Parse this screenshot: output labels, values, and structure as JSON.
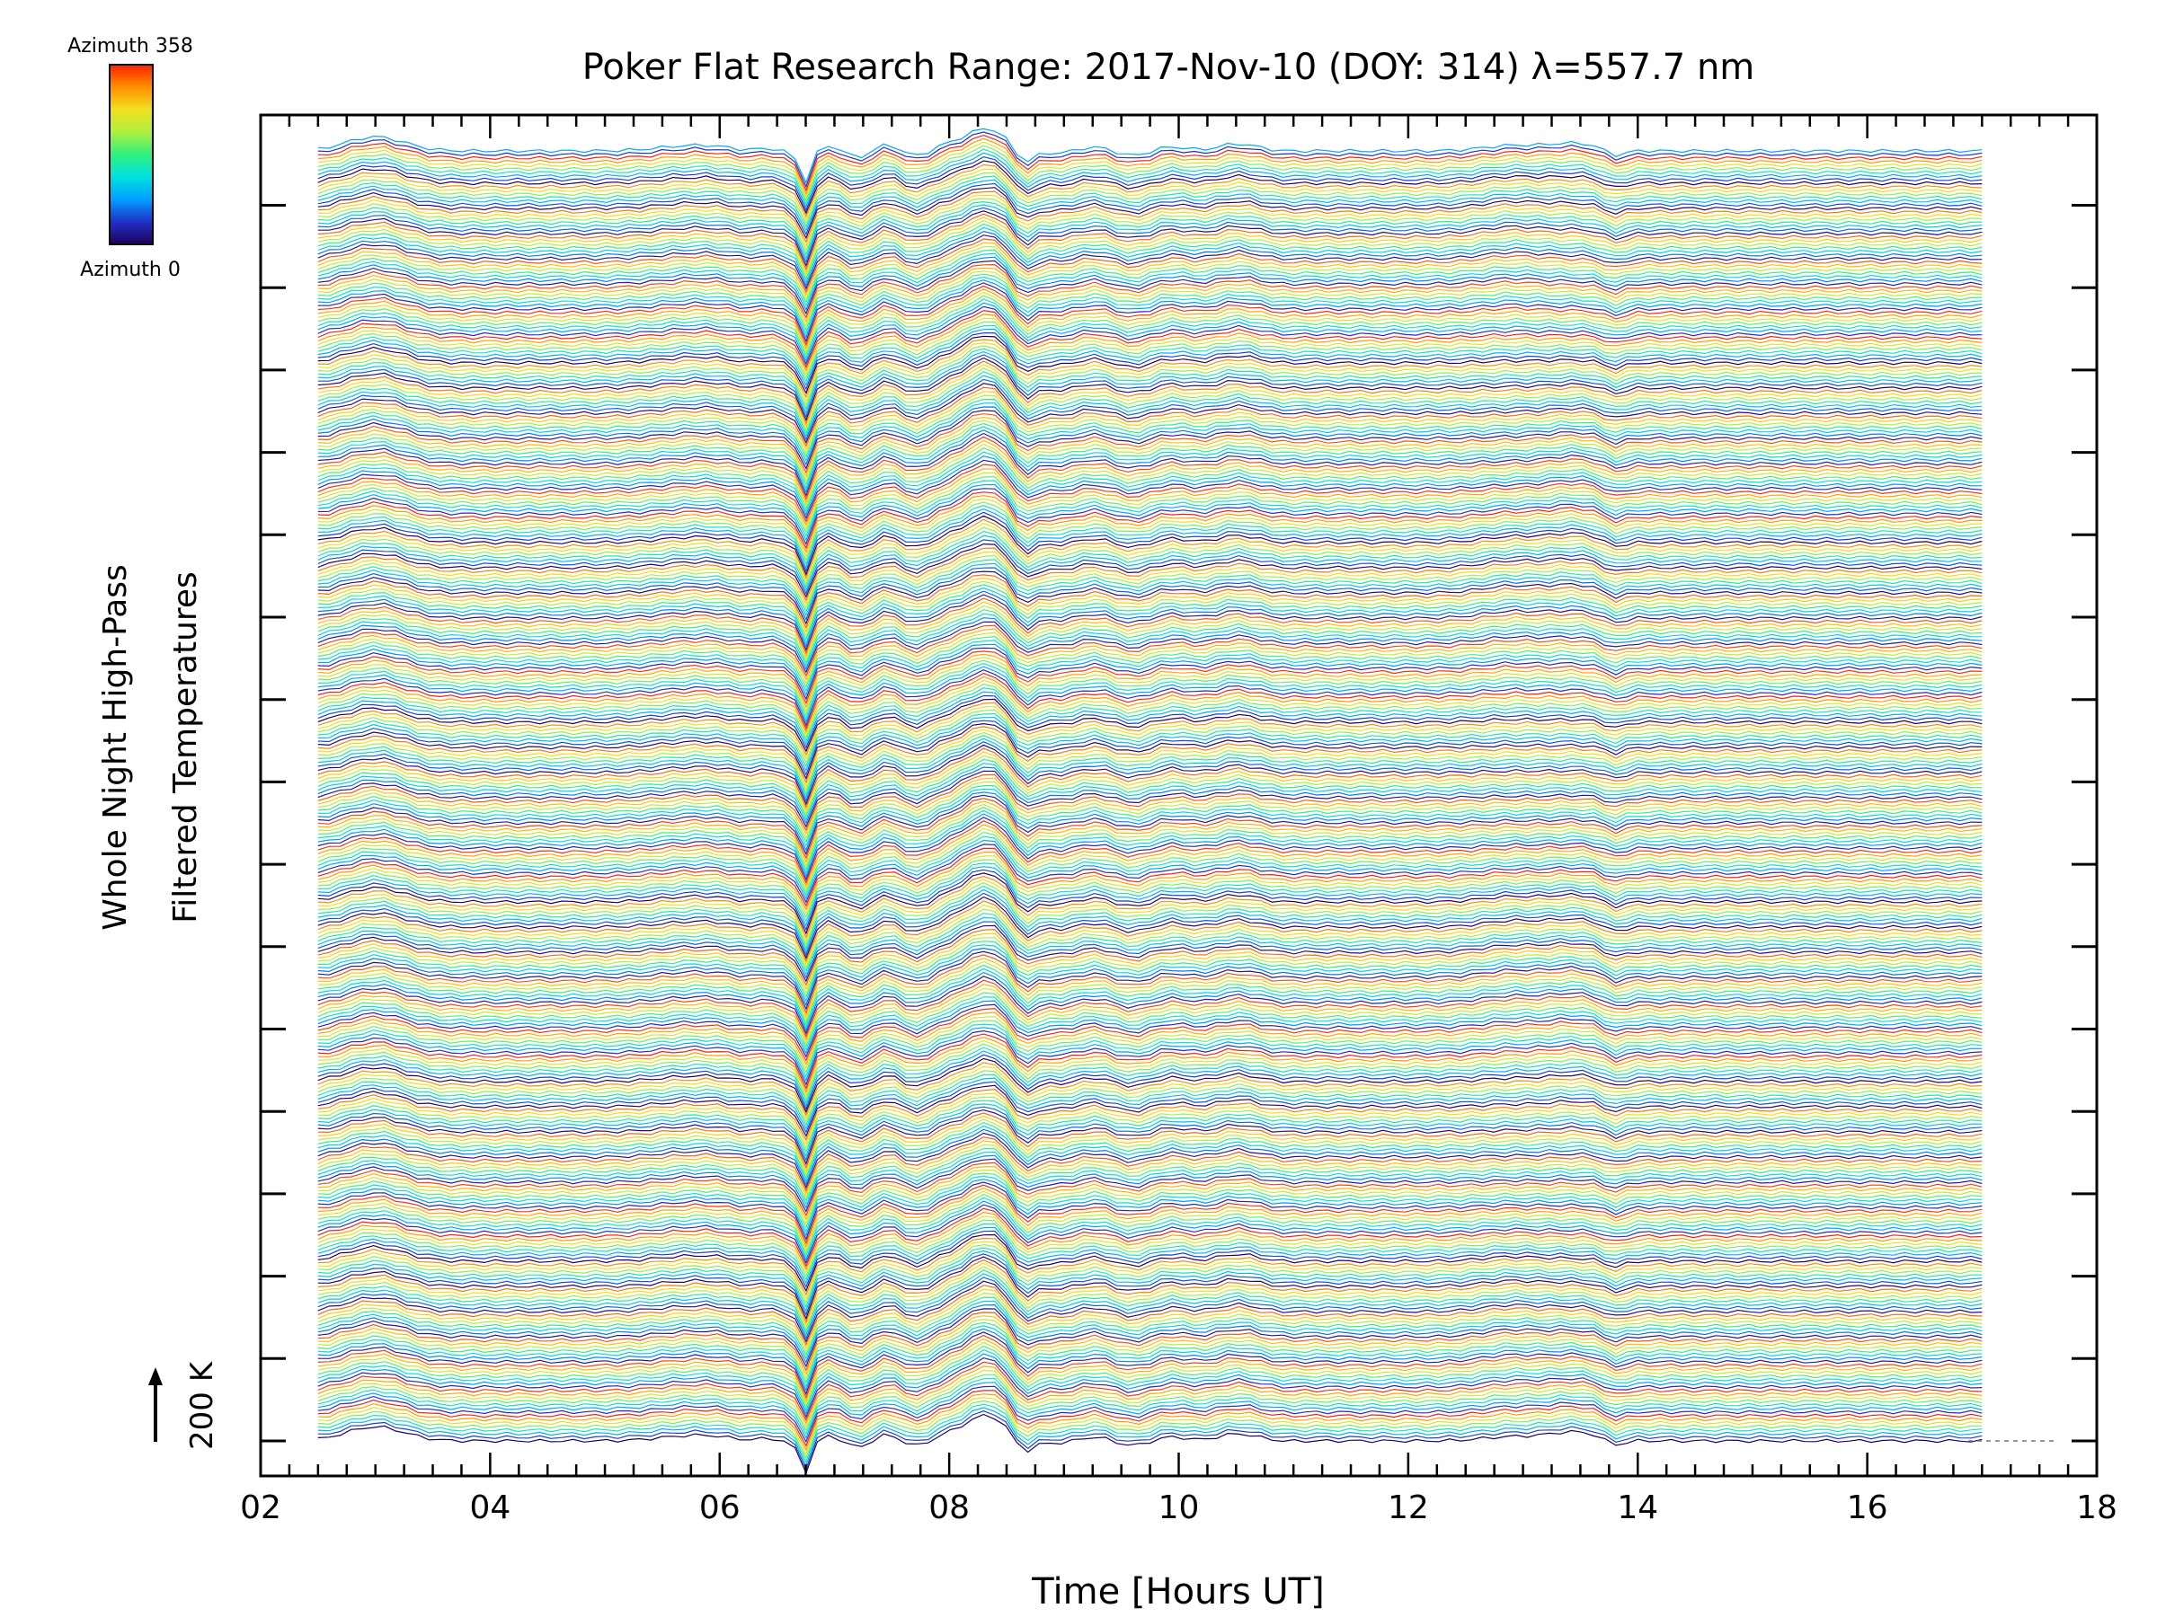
{
  "chart_data": {
    "type": "line",
    "title": "Poker Flat Research Range: 2017-Nov-10 (DOY: 314) λ=557.7 nm",
    "xlabel": "Time [Hours UT]",
    "ylabel_line1": "Whole Night High-Pass",
    "ylabel_line2": "Filtered Temperatures",
    "xlim": [
      2,
      18
    ],
    "x_ticks": [
      "02",
      "04",
      "06",
      "08",
      "10",
      "12",
      "14",
      "16",
      "18"
    ],
    "data_time_range": [
      2.5,
      17.0
    ],
    "scale_bar_label": "200 K",
    "scale_bar_value": 200,
    "series_count": 360,
    "azimuth_range": [
      0,
      358
    ],
    "colorbar": {
      "top_label": "Azimuth 358",
      "bottom_label": "Azimuth 0",
      "colors": [
        "#20005a",
        "#2030c8",
        "#00a0ff",
        "#00e0e0",
        "#30f080",
        "#b0f040",
        "#f0e020",
        "#ff9000",
        "#ff2000"
      ]
    },
    "features": [
      {
        "time": 6.75,
        "description": "sharp negative spike"
      },
      {
        "time": 8.35,
        "description": "large positive hump then drop"
      },
      {
        "time": 13.4,
        "description": "moderate double bump"
      }
    ],
    "grid": false,
    "legend": "colorbar top-left"
  }
}
